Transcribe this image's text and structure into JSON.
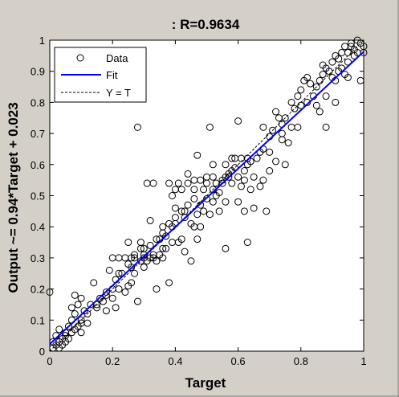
{
  "chart_data": {
    "type": "scatter",
    "title": ": R=0.9634",
    "xlabel": "Target",
    "ylabel": "Output ~= 0.94*Target + 0.023",
    "xlim": [
      0,
      1
    ],
    "ylim": [
      0,
      1
    ],
    "xticks": [
      "0",
      "0.2",
      "0.4",
      "0.6",
      "0.8",
      "1"
    ],
    "yticks": [
      "0",
      "0.1",
      "0.2",
      "0.3",
      "0.4",
      "0.5",
      "0.6",
      "0.7",
      "0.8",
      "0.9",
      "1"
    ],
    "grid": false,
    "legend_position": "top-left",
    "fit": {
      "slope": 0.94,
      "intercept": 0.023
    },
    "series": [
      {
        "name": "Data",
        "style": "open-circle",
        "color": "#000000",
        "points": [
          [
            0.0,
            0.19
          ],
          [
            0.01,
            0.01
          ],
          [
            0.01,
            0.03
          ],
          [
            0.02,
            0.02
          ],
          [
            0.02,
            0.05
          ],
          [
            0.03,
            0.01
          ],
          [
            0.03,
            0.03
          ],
          [
            0.03,
            0.07
          ],
          [
            0.04,
            0.02
          ],
          [
            0.04,
            0.04
          ],
          [
            0.05,
            0.03
          ],
          [
            0.05,
            0.06
          ],
          [
            0.06,
            0.04
          ],
          [
            0.06,
            0.08
          ],
          [
            0.07,
            0.06
          ],
          [
            0.07,
            0.1
          ],
          [
            0.07,
            0.14
          ],
          [
            0.08,
            0.07
          ],
          [
            0.08,
            0.12
          ],
          [
            0.08,
            0.18
          ],
          [
            0.09,
            0.08
          ],
          [
            0.09,
            0.15
          ],
          [
            0.1,
            0.06
          ],
          [
            0.1,
            0.1
          ],
          [
            0.1,
            0.17
          ],
          [
            0.11,
            0.13
          ],
          [
            0.12,
            0.09
          ],
          [
            0.13,
            0.15
          ],
          [
            0.14,
            0.22
          ],
          [
            0.15,
            0.14
          ],
          [
            0.16,
            0.17
          ],
          [
            0.17,
            0.16
          ],
          [
            0.18,
            0.13
          ],
          [
            0.18,
            0.19
          ],
          [
            0.19,
            0.26
          ],
          [
            0.2,
            0.17
          ],
          [
            0.2,
            0.3
          ],
          [
            0.21,
            0.23
          ],
          [
            0.21,
            0.14
          ],
          [
            0.22,
            0.3
          ],
          [
            0.22,
            0.2
          ],
          [
            0.23,
            0.25
          ],
          [
            0.24,
            0.19
          ],
          [
            0.24,
            0.3
          ],
          [
            0.25,
            0.21
          ],
          [
            0.25,
            0.35
          ],
          [
            0.26,
            0.27
          ],
          [
            0.26,
            0.22
          ],
          [
            0.27,
            0.25
          ],
          [
            0.27,
            0.31
          ],
          [
            0.28,
            0.16
          ],
          [
            0.28,
            0.72
          ],
          [
            0.29,
            0.29
          ],
          [
            0.29,
            0.33
          ],
          [
            0.3,
            0.31
          ],
          [
            0.3,
            0.27
          ],
          [
            0.31,
            0.29
          ],
          [
            0.31,
            0.54
          ],
          [
            0.32,
            0.3
          ],
          [
            0.32,
            0.34
          ],
          [
            0.33,
            0.31
          ],
          [
            0.33,
            0.54
          ],
          [
            0.34,
            0.29
          ],
          [
            0.34,
            0.2
          ],
          [
            0.35,
            0.36
          ],
          [
            0.35,
            0.31
          ],
          [
            0.36,
            0.38
          ],
          [
            0.36,
            0.33
          ],
          [
            0.37,
            0.33
          ],
          [
            0.37,
            0.37
          ],
          [
            0.38,
            0.22
          ],
          [
            0.38,
            0.41
          ],
          [
            0.38,
            0.54
          ],
          [
            0.39,
            0.4
          ],
          [
            0.39,
            0.35
          ],
          [
            0.4,
            0.46
          ],
          [
            0.4,
            0.43
          ],
          [
            0.4,
            0.52
          ],
          [
            0.41,
            0.54
          ],
          [
            0.41,
            0.35
          ],
          [
            0.42,
            0.36
          ],
          [
            0.42,
            0.52
          ],
          [
            0.43,
            0.43
          ],
          [
            0.43,
            0.45
          ],
          [
            0.43,
            0.32
          ],
          [
            0.44,
            0.54
          ],
          [
            0.44,
            0.47
          ],
          [
            0.45,
            0.29
          ],
          [
            0.45,
            0.41
          ],
          [
            0.46,
            0.49
          ],
          [
            0.46,
            0.52
          ],
          [
            0.47,
            0.44
          ],
          [
            0.47,
            0.63
          ],
          [
            0.47,
            0.36
          ],
          [
            0.48,
            0.47
          ],
          [
            0.48,
            0.4
          ],
          [
            0.49,
            0.52
          ],
          [
            0.49,
            0.45
          ],
          [
            0.5,
            0.54
          ],
          [
            0.5,
            0.49
          ],
          [
            0.51,
            0.72
          ],
          [
            0.51,
            0.44
          ],
          [
            0.52,
            0.52
          ],
          [
            0.52,
            0.48
          ],
          [
            0.52,
            0.56
          ],
          [
            0.53,
            0.54
          ],
          [
            0.54,
            0.51
          ],
          [
            0.54,
            0.45
          ],
          [
            0.55,
            0.55
          ],
          [
            0.55,
            0.54
          ],
          [
            0.56,
            0.56
          ],
          [
            0.56,
            0.33
          ],
          [
            0.57,
            0.56
          ],
          [
            0.58,
            0.58
          ],
          [
            0.58,
            0.54
          ],
          [
            0.59,
            0.59
          ],
          [
            0.59,
            0.62
          ],
          [
            0.6,
            0.56
          ],
          [
            0.6,
            0.74
          ],
          [
            0.61,
            0.62
          ],
          [
            0.61,
            0.53
          ],
          [
            0.62,
            0.58
          ],
          [
            0.62,
            0.55
          ],
          [
            0.63,
            0.6
          ],
          [
            0.63,
            0.62
          ],
          [
            0.64,
            0.61
          ],
          [
            0.64,
            0.52
          ],
          [
            0.65,
            0.46
          ],
          [
            0.66,
            0.62
          ],
          [
            0.67,
            0.64
          ],
          [
            0.67,
            0.53
          ],
          [
            0.68,
            0.65
          ],
          [
            0.68,
            0.72
          ],
          [
            0.69,
            0.45
          ],
          [
            0.7,
            0.69
          ],
          [
            0.7,
            0.64
          ],
          [
            0.71,
            0.71
          ],
          [
            0.72,
            0.77
          ],
          [
            0.72,
            0.61
          ],
          [
            0.73,
            0.75
          ],
          [
            0.74,
            0.73
          ],
          [
            0.74,
            0.68
          ],
          [
            0.75,
            0.75
          ],
          [
            0.76,
            0.67
          ],
          [
            0.77,
            0.8
          ],
          [
            0.77,
            0.72
          ],
          [
            0.78,
            0.78
          ],
          [
            0.79,
            0.82
          ],
          [
            0.79,
            0.72
          ],
          [
            0.8,
            0.79
          ],
          [
            0.8,
            0.84
          ],
          [
            0.81,
            0.87
          ],
          [
            0.82,
            0.88
          ],
          [
            0.82,
            0.8
          ],
          [
            0.83,
            0.86
          ],
          [
            0.84,
            0.82
          ],
          [
            0.85,
            0.79
          ],
          [
            0.85,
            0.85
          ],
          [
            0.86,
            0.87
          ],
          [
            0.86,
            0.77
          ],
          [
            0.87,
            0.89
          ],
          [
            0.87,
            0.92
          ],
          [
            0.88,
            0.91
          ],
          [
            0.88,
            0.82
          ],
          [
            0.89,
            0.9
          ],
          [
            0.9,
            0.93
          ],
          [
            0.9,
            0.88
          ],
          [
            0.91,
            0.87
          ],
          [
            0.91,
            0.95
          ],
          [
            0.92,
            0.94
          ],
          [
            0.92,
            0.9
          ],
          [
            0.93,
            0.96
          ],
          [
            0.93,
            0.91
          ],
          [
            0.94,
            0.98
          ],
          [
            0.94,
            0.89
          ],
          [
            0.95,
            0.96
          ],
          [
            0.95,
            0.93
          ],
          [
            0.96,
            0.98
          ],
          [
            0.96,
            0.99
          ],
          [
            0.97,
            0.97
          ],
          [
            0.97,
            0.95
          ],
          [
            0.98,
            1.0
          ],
          [
            0.98,
            0.96
          ],
          [
            0.99,
            0.99
          ],
          [
            0.99,
            0.87
          ],
          [
            1.0,
            0.98
          ],
          [
            1.0,
            0.96
          ],
          [
            0.95,
            0.88
          ],
          [
            0.88,
            0.72
          ],
          [
            0.91,
            0.8
          ],
          [
            0.44,
            0.57
          ],
          [
            0.5,
            0.56
          ],
          [
            0.52,
            0.6
          ],
          [
            0.57,
            0.57
          ],
          [
            0.46,
            0.55
          ],
          [
            0.36,
            0.3
          ],
          [
            0.33,
            0.3
          ],
          [
            0.3,
            0.3
          ],
          [
            0.27,
            0.3
          ],
          [
            0.26,
            0.3
          ],
          [
            0.4,
            0.41
          ],
          [
            0.42,
            0.45
          ],
          [
            0.36,
            0.4
          ],
          [
            0.34,
            0.36
          ],
          [
            0.46,
            0.4
          ],
          [
            0.53,
            0.5
          ],
          [
            0.56,
            0.6
          ],
          [
            0.58,
            0.62
          ],
          [
            0.3,
            0.33
          ],
          [
            0.2,
            0.2
          ],
          [
            0.15,
            0.15
          ],
          [
            0.12,
            0.12
          ],
          [
            0.05,
            0.05
          ],
          [
            0.1,
            0.09
          ],
          [
            0.18,
            0.18
          ],
          [
            0.22,
            0.25
          ],
          [
            0.25,
            0.28
          ],
          [
            0.29,
            0.35
          ],
          [
            0.32,
            0.42
          ],
          [
            0.39,
            0.5
          ],
          [
            0.48,
            0.55
          ],
          [
            0.6,
            0.48
          ],
          [
            0.63,
            0.35
          ],
          [
            0.65,
            0.56
          ],
          [
            0.7,
            0.58
          ],
          [
            0.75,
            0.6
          ],
          [
            0.74,
            0.7
          ],
          [
            0.68,
            0.55
          ],
          [
            0.62,
            0.45
          ],
          [
            0.56,
            0.48
          ]
        ]
      },
      {
        "name": "Fit",
        "style": "solid-line",
        "color": "#0000ff"
      },
      {
        "name": "Y = T",
        "style": "dashed-line",
        "color": "#000000"
      }
    ]
  }
}
